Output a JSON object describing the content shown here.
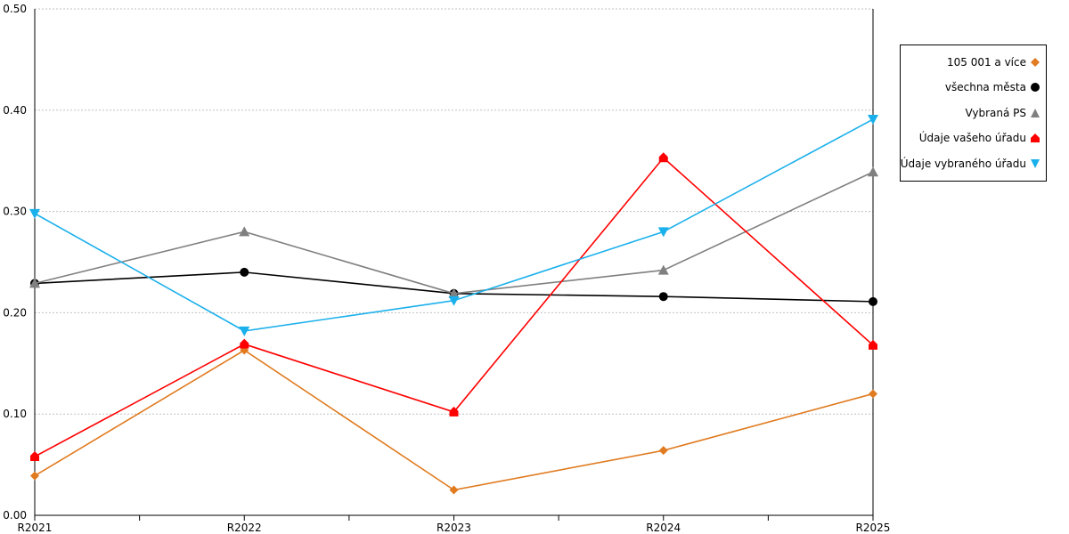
{
  "chart_data": {
    "type": "line",
    "categories": [
      "R2021",
      "R2022",
      "R2023",
      "R2024",
      "R2025"
    ],
    "ylim": [
      0,
      0.5
    ],
    "yticks": [
      "0.00",
      "0.10",
      "0.20",
      "0.30",
      "0.40",
      "0.50"
    ],
    "grid": "horizontal dotted",
    "legend_position": "right",
    "series": [
      {
        "name": "105 001 a více",
        "color": "#e07b20",
        "marker": "diamond",
        "values": [
          0.039,
          0.163,
          0.025,
          0.064,
          0.12
        ]
      },
      {
        "name": "všechna města",
        "color": "#000000",
        "marker": "circle",
        "values": [
          0.229,
          0.24,
          0.219,
          0.216,
          0.211
        ]
      },
      {
        "name": "Vybraná PS",
        "color": "#808080",
        "marker": "triangle-up",
        "values": [
          0.229,
          0.28,
          0.219,
          0.242,
          0.339
        ]
      },
      {
        "name": "Údaje vašeho úřadu",
        "color": "#ff0000",
        "marker": "house",
        "values": [
          0.058,
          0.169,
          0.102,
          0.353,
          0.168
        ]
      },
      {
        "name": "Údaje vybraného úřadu",
        "color": "#1ab0ec",
        "marker": "triangle-down",
        "values": [
          0.298,
          0.182,
          0.212,
          0.28,
          0.391
        ]
      }
    ]
  }
}
